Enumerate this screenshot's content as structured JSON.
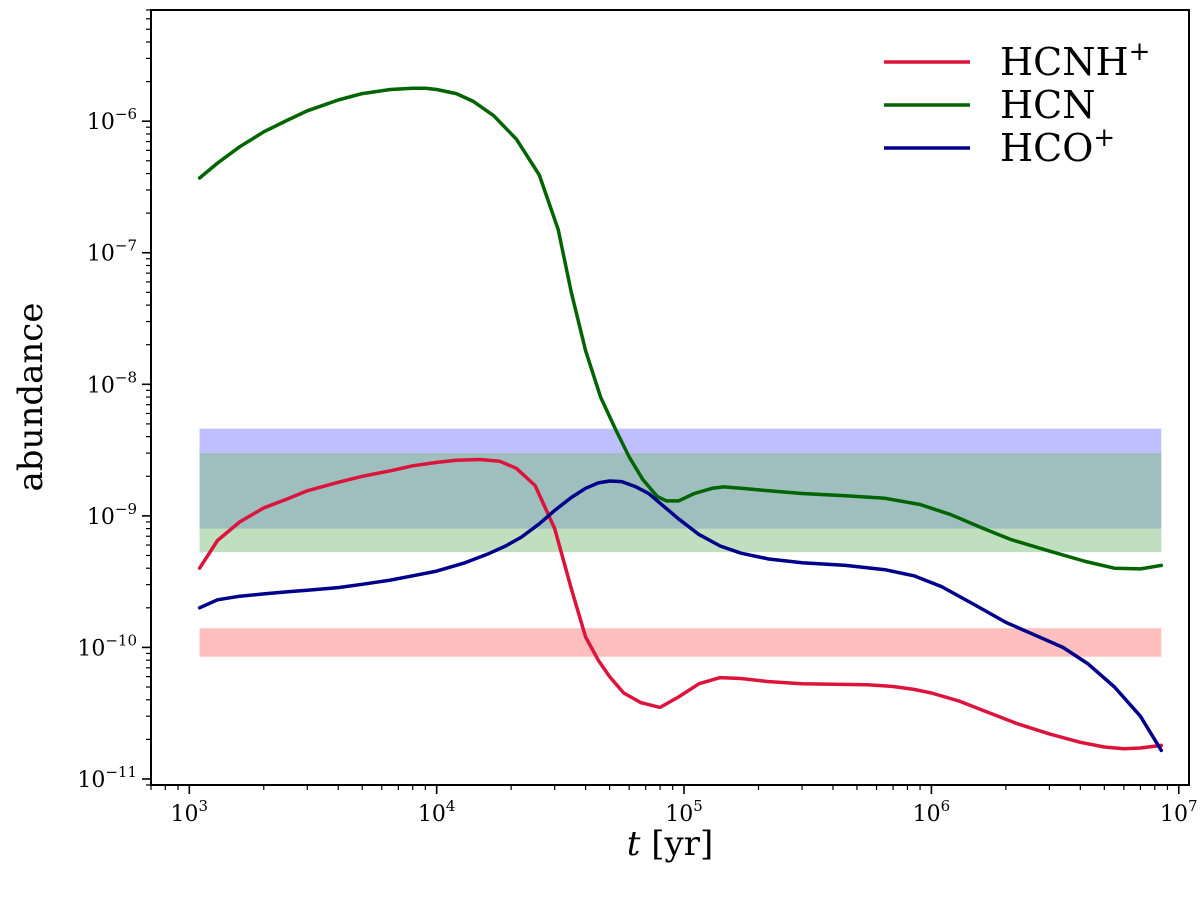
{
  "chart_data": {
    "type": "line",
    "xlabel": {
      "var": "t",
      "unit": "[yr]"
    },
    "ylabel": "abundance",
    "xscale": "log",
    "yscale": "log",
    "xlim": [
      700,
      11000000
    ],
    "ylim": [
      9e-12,
      7e-06
    ],
    "x_ticks": [
      {
        "value": 1000,
        "base": "10",
        "exp": "3"
      },
      {
        "value": 10000,
        "base": "10",
        "exp": "4"
      },
      {
        "value": 100000,
        "base": "10",
        "exp": "5"
      },
      {
        "value": 1000000,
        "base": "10",
        "exp": "6"
      },
      {
        "value": 10000000,
        "base": "10",
        "exp": "7"
      }
    ],
    "y_ticks": [
      {
        "value": 1e-11,
        "base": "10",
        "exp": "−11"
      },
      {
        "value": 1e-10,
        "base": "10",
        "exp": "−10"
      },
      {
        "value": 1e-09,
        "base": "10",
        "exp": "−9"
      },
      {
        "value": 1e-08,
        "base": "10",
        "exp": "−8"
      },
      {
        "value": 1e-07,
        "base": "10",
        "exp": "−7"
      },
      {
        "value": 1e-06,
        "base": "10",
        "exp": "−6"
      }
    ],
    "legend_position": "top-right",
    "bands": [
      {
        "color": "#8080ff",
        "x": [
          1100,
          8500000
        ],
        "y": [
          8e-10,
          4.6e-09
        ]
      },
      {
        "color": "#80c080",
        "x": [
          1100,
          8500000
        ],
        "y": [
          5.3e-10,
          3e-09
        ]
      },
      {
        "color": "#ff8080",
        "x": [
          1100,
          8500000
        ],
        "y": [
          8.5e-11,
          1.4e-10
        ]
      }
    ],
    "series": [
      {
        "name": "HCNH",
        "name_sup": "+",
        "color": "#dc143c",
        "x": [
          1100,
          1300,
          1600,
          2000,
          2500,
          3000,
          4000,
          5000,
          6500,
          8000,
          10000,
          12000,
          15000,
          18000,
          21000,
          25000,
          30000,
          35000,
          40000,
          45000,
          50000,
          57000,
          67000,
          80000,
          95000,
          115000,
          140000,
          170000,
          220000,
          300000,
          400000,
          550000,
          700000,
          850000,
          1000000,
          1300000,
          1700000,
          2200000,
          3000000,
          4000000,
          5000000,
          6000000,
          7000000,
          8500000
        ],
        "y": [
          4e-10,
          6.5e-10,
          9e-10,
          1.15e-09,
          1.35e-09,
          1.55e-09,
          1.8e-09,
          2e-09,
          2.2e-09,
          2.4e-09,
          2.55e-09,
          2.65e-09,
          2.68e-09,
          2.6e-09,
          2.3e-09,
          1.7e-09,
          8e-10,
          2.8e-10,
          1.2e-10,
          8e-11,
          6e-11,
          4.5e-11,
          3.8e-11,
          3.5e-11,
          4.2e-11,
          5.3e-11,
          5.9e-11,
          5.8e-11,
          5.5e-11,
          5.3e-11,
          5.25e-11,
          5.2e-11,
          5.05e-11,
          4.8e-11,
          4.5e-11,
          3.9e-11,
          3.2e-11,
          2.65e-11,
          2.2e-11,
          1.9e-11,
          1.75e-11,
          1.7e-11,
          1.72e-11,
          1.8e-11
        ]
      },
      {
        "name": "HCN",
        "name_sup": "",
        "color": "#006400",
        "x": [
          1100,
          1300,
          1600,
          2000,
          2500,
          3000,
          4000,
          5000,
          6500,
          8000,
          9000,
          10000,
          12000,
          14000,
          17000,
          21000,
          26000,
          31000,
          35000,
          40000,
          46000,
          53000,
          60000,
          68000,
          78000,
          85000,
          95000,
          110000,
          130000,
          145000,
          170000,
          220000,
          300000,
          450000,
          650000,
          900000,
          1200000,
          1600000,
          2100000,
          3000000,
          4200000,
          5500000,
          7000000,
          8500000
        ],
        "y": [
          3.7e-07,
          4.8e-07,
          6.4e-07,
          8.3e-07,
          1.02e-06,
          1.2e-06,
          1.45e-06,
          1.62e-06,
          1.74e-06,
          1.78e-06,
          1.78e-06,
          1.74e-06,
          1.62e-06,
          1.42e-06,
          1.1e-06,
          7.3e-07,
          3.9e-07,
          1.5e-07,
          5e-08,
          1.8e-08,
          8e-09,
          4.5e-09,
          2.8e-09,
          1.9e-09,
          1.4e-09,
          1.3e-09,
          1.3e-09,
          1.48e-09,
          1.62e-09,
          1.66e-09,
          1.62e-09,
          1.55e-09,
          1.48e-09,
          1.42e-09,
          1.36e-09,
          1.22e-09,
          1.02e-09,
          8.1e-10,
          6.6e-10,
          5.4e-10,
          4.5e-10,
          4e-10,
          3.95e-10,
          4.2e-10
        ]
      },
      {
        "name": "HCO",
        "name_sup": "+",
        "color": "#00008b",
        "x": [
          1100,
          1300,
          1600,
          2000,
          2500,
          3000,
          4000,
          5000,
          6500,
          8000,
          10000,
          13000,
          16000,
          19000,
          22000,
          26000,
          30000,
          35000,
          40000,
          45000,
          50000,
          56000,
          64000,
          72000,
          82000,
          95000,
          115000,
          140000,
          170000,
          220000,
          300000,
          450000,
          650000,
          850000,
          1100000,
          1500000,
          2000000,
          2600000,
          3400000,
          4300000,
          5500000,
          7000000,
          8500000
        ],
        "y": [
          2e-10,
          2.3e-10,
          2.45e-10,
          2.55e-10,
          2.65e-10,
          2.72e-10,
          2.85e-10,
          3.02e-10,
          3.25e-10,
          3.5e-10,
          3.8e-10,
          4.4e-10,
          5.1e-10,
          5.9e-10,
          6.9e-10,
          8.7e-10,
          1.1e-09,
          1.38e-09,
          1.62e-09,
          1.78e-09,
          1.84e-09,
          1.82e-09,
          1.66e-09,
          1.48e-09,
          1.2e-09,
          9.5e-10,
          7.2e-10,
          5.9e-10,
          5.2e-10,
          4.7e-10,
          4.4e-10,
          4.2e-10,
          3.9e-10,
          3.5e-10,
          2.9e-10,
          2.1e-10,
          1.55e-10,
          1.25e-10,
          1e-10,
          7.5e-11,
          5e-11,
          3e-11,
          1.65e-11
        ]
      }
    ]
  }
}
